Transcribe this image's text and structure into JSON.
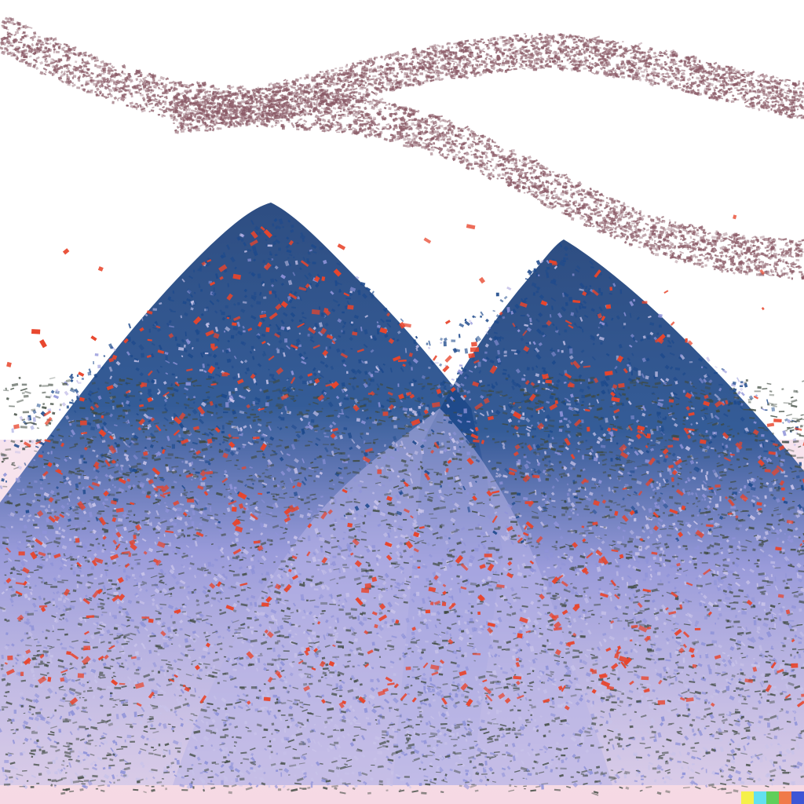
{
  "palette": {
    "sky": "#ffffff",
    "ground_top": "#f7e4ee",
    "ground_bottom": "#f6d9e4",
    "mountain_light": "#c8c3e9",
    "mountain_mid": "#8f93d8",
    "mountain_dark": "#1e4a8c",
    "mountain_deep": "#173a74",
    "accent_red": "#e8452c",
    "cloud_speckle": "#8a5a66",
    "ground_speckle": "#3f4a40"
  },
  "signature_colors": [
    "#f5f04a",
    "#62e0f0",
    "#5fcf5a",
    "#f07a4a",
    "#3d56d6"
  ]
}
